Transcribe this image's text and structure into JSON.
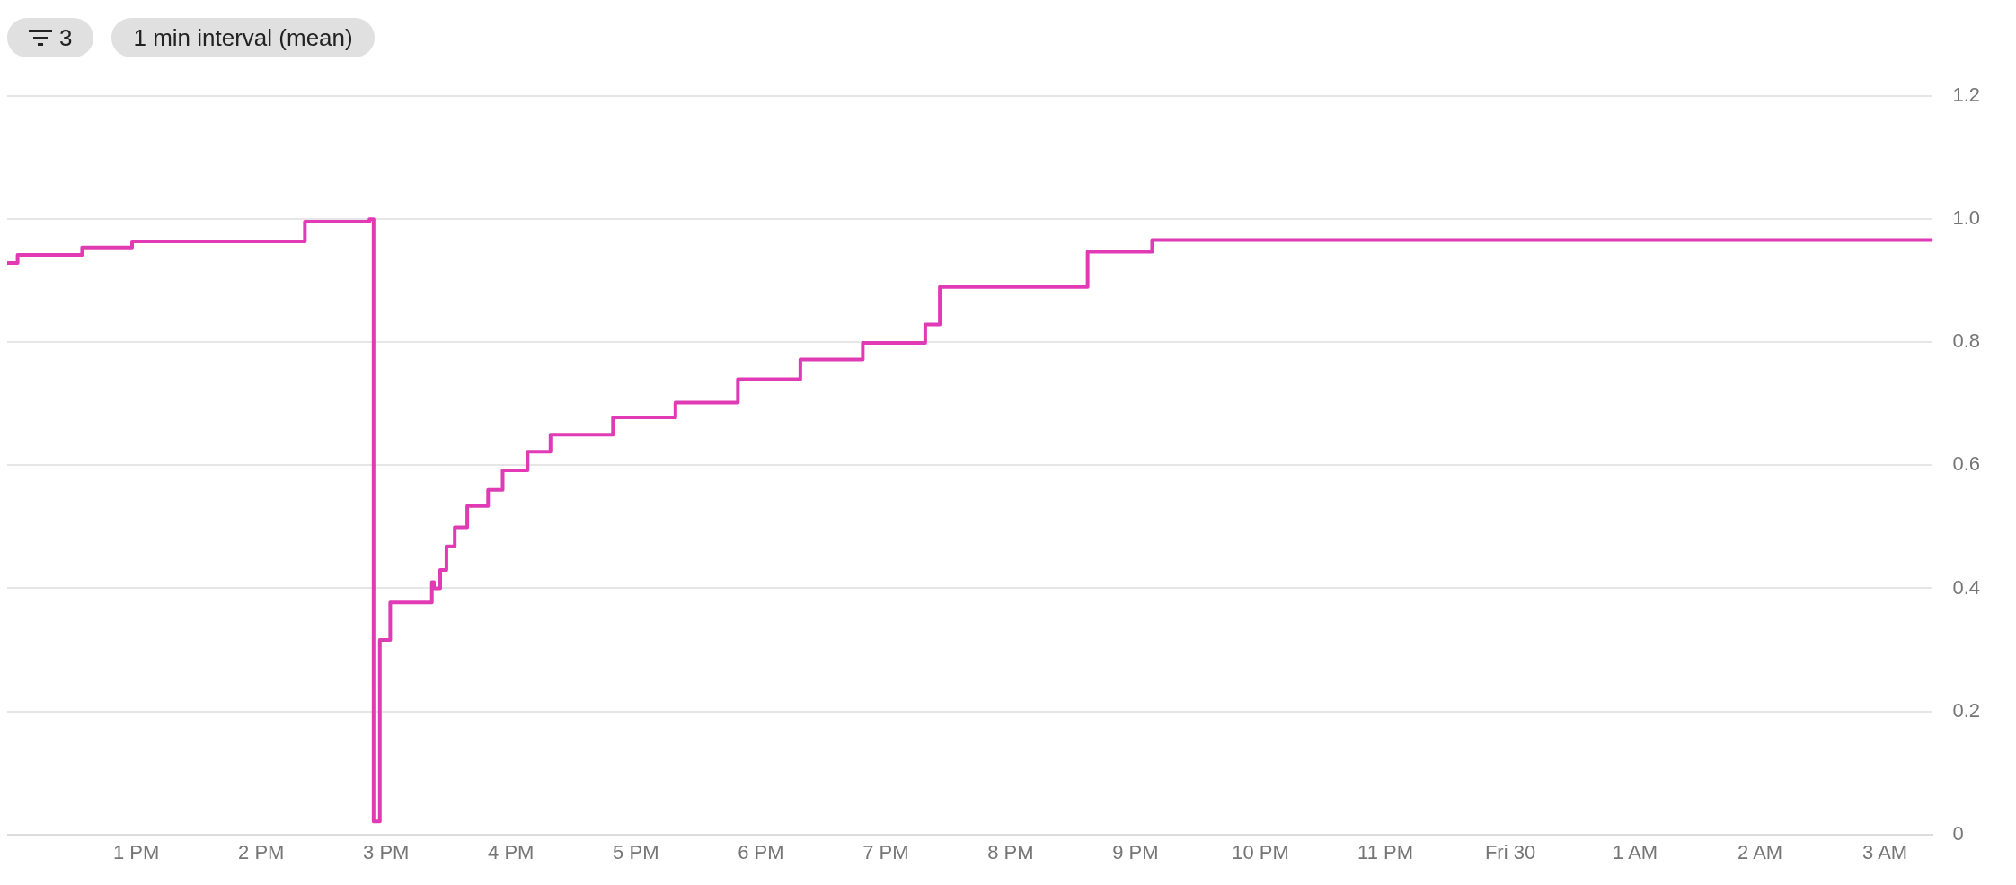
{
  "chart_data": {
    "type": "step",
    "annotations": [
      "3",
      "1 min interval (mean)"
    ],
    "x": [
      "--06-29T11:58",
      "--06-29T12:03",
      "--06-29T12:34",
      "--06-29T12:58",
      "--06-29T14:21",
      "--06-29T14:52",
      "--06-29T14:54",
      "--06-29T14:57",
      "--06-29T15:02",
      "--06-29T15:22",
      "--06-29T15:23",
      "--06-29T15:26",
      "--06-29T15:29",
      "--06-29T15:33",
      "--06-29T15:39",
      "--06-29T15:49",
      "--06-29T15:56",
      "--06-29T16:08",
      "--06-29T16:19",
      "--06-29T16:49",
      "--06-29T17:19",
      "--06-29T17:49",
      "--06-29T18:19",
      "--06-29T18:49",
      "--06-29T19:19",
      "--06-29T19:26",
      "--06-29T20:37",
      "--06-29T21:08",
      "--06-30T03:23"
    ],
    "series": [
      {
        "color": "#e03bb5",
        "values": [
          0.929,
          0.942,
          0.954,
          0.964,
          0.996,
          1.0,
          0.021,
          0.316,
          0.377,
          0.41,
          0.4,
          0.43,
          0.468,
          0.499,
          0.534,
          0.56,
          0.592,
          0.622,
          0.65,
          0.678,
          0.702,
          0.74,
          0.772,
          0.799,
          0.829,
          0.89,
          0.947,
          0.966,
          0.966
        ]
      }
    ],
    "xlim": [
      "--06-29T11:58",
      "--06-30T03:23"
    ],
    "xticks": [
      {
        "value": "--06-29T13:00",
        "label": "1 PM"
      },
      {
        "value": "--06-29T14:00",
        "label": "2 PM"
      },
      {
        "value": "--06-29T15:00",
        "label": "3 PM"
      },
      {
        "value": "--06-29T16:00",
        "label": "4 PM"
      },
      {
        "value": "--06-29T17:00",
        "label": "5 PM"
      },
      {
        "value": "--06-29T18:00",
        "label": "6 PM"
      },
      {
        "value": "--06-29T19:00",
        "label": "7 PM"
      },
      {
        "value": "--06-29T20:00",
        "label": "8 PM"
      },
      {
        "value": "--06-29T21:00",
        "label": "9 PM"
      },
      {
        "value": "--06-29T22:00",
        "label": "10 PM"
      },
      {
        "value": "--06-29T23:00",
        "label": "11 PM"
      },
      {
        "value": "--06-30T00:00",
        "label": "Fri 30"
      },
      {
        "value": "--06-30T01:00",
        "label": "1 AM"
      },
      {
        "value": "--06-30T02:00",
        "label": "2 AM"
      },
      {
        "value": "--06-30T03:00",
        "label": "3 AM"
      }
    ],
    "ylim": [
      0,
      1.2
    ],
    "yticks": [
      0,
      0.2,
      0.4,
      0.6,
      0.8,
      {
        "value": 1,
        "label": "1.0"
      },
      1.2
    ],
    "grid": "y"
  }
}
